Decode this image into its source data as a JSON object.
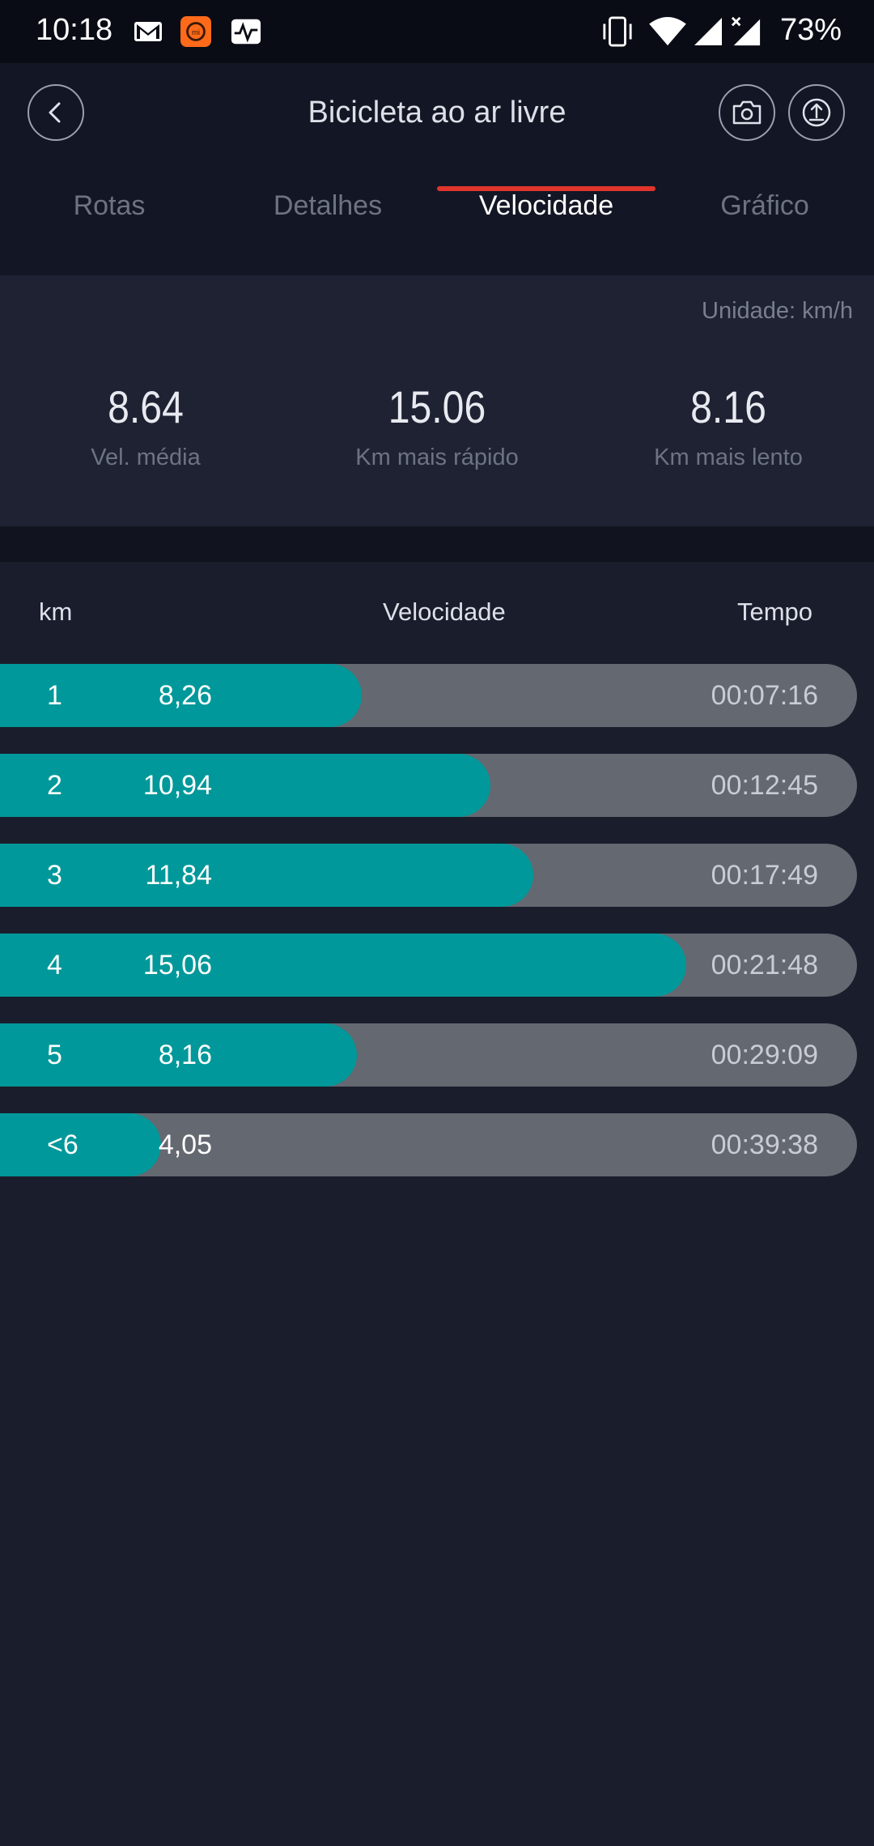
{
  "status_bar": {
    "time": "10:18",
    "battery": "73%",
    "icons": [
      "gmail-icon",
      "mi-fit-icon",
      "activity-icon",
      "vibrate-icon",
      "wifi-icon",
      "signal-icon",
      "signal-no-data-icon"
    ]
  },
  "header": {
    "title": "Bicicleta ao ar livre",
    "back_icon": "chevron-left-icon",
    "camera_icon": "camera-icon",
    "share_icon": "upload-icon"
  },
  "tabs": [
    {
      "label": "Rotas",
      "active": false
    },
    {
      "label": "Detalhes",
      "active": false
    },
    {
      "label": "Velocidade",
      "active": true
    },
    {
      "label": "Gráfico",
      "active": false
    }
  ],
  "summary": {
    "unit": "Unidade: km/h",
    "stats": [
      {
        "value": "8.64",
        "label": "Vel. média"
      },
      {
        "value": "15.06",
        "label": "Km mais rápido"
      },
      {
        "value": "8.16",
        "label": "Km mais lento"
      }
    ]
  },
  "table": {
    "headers": {
      "km": "km",
      "speed": "Velocidade",
      "time": "Tempo"
    },
    "rows": [
      {
        "km": "1",
        "speed": "8,26",
        "time": "00:07:16",
        "fraction": 0.548
      },
      {
        "km": "2",
        "speed": "10,94",
        "time": "00:12:45",
        "fraction": 0.727
      },
      {
        "km": "3",
        "speed": "11,84",
        "time": "00:17:49",
        "fraction": 0.787
      },
      {
        "km": "4",
        "speed": "15,06",
        "time": "00:21:48",
        "fraction": 1.0
      },
      {
        "km": "5",
        "speed": "8,16",
        "time": "00:29:09",
        "fraction": 0.542
      },
      {
        "km": "<6",
        "speed": "4,05",
        "time": "00:39:38",
        "fraction": 0.269
      }
    ]
  },
  "colors": {
    "accent_tab": "#e0342c",
    "bar_fill": "#00989a",
    "bar_track": "#646870",
    "background": "#1a1d2c"
  }
}
